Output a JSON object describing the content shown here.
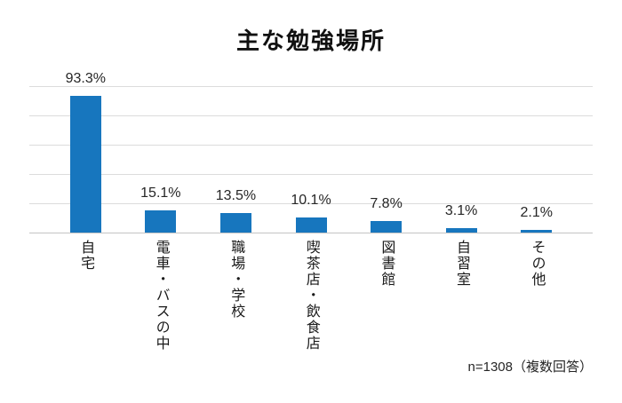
{
  "chart_data": {
    "type": "bar",
    "title": "主な勉強場所",
    "categories": [
      "自宅",
      "電車・バスの中",
      "職場・学校",
      "喫茶店・飲食店",
      "図書館",
      "自習室",
      "その他"
    ],
    "values": [
      93.3,
      15.1,
      13.5,
      10.1,
      7.8,
      3.1,
      2.1
    ],
    "value_labels": [
      "93.3%",
      "15.1%",
      "13.5%",
      "10.1%",
      "7.8%",
      "3.1%",
      "2.1%"
    ],
    "note": "n=1308（複数回答）",
    "xlabel": "",
    "ylabel": "",
    "ylim": [
      0,
      100
    ],
    "grid_interval": 20,
    "grid": true,
    "legend": false,
    "colors": {
      "bar": "#1776BE",
      "gridline": "#DCDCDC",
      "axis": "#C4C4C4",
      "title_text": "#111111",
      "label_text": "#262626"
    }
  }
}
